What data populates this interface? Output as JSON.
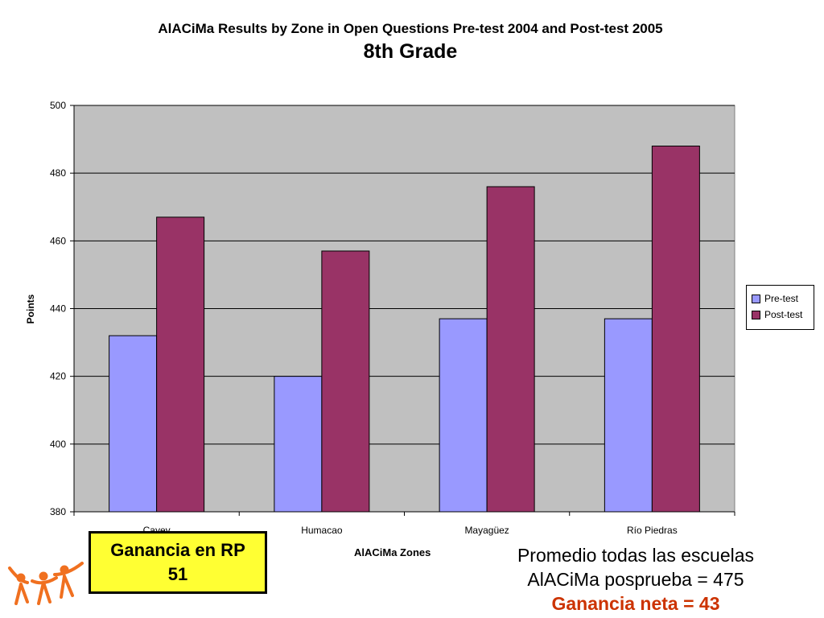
{
  "header": {
    "title": "AlACiMa Results by Zone in Open Questions Pre-test 2004 and Post-test 2005",
    "subtitle": "8th Grade"
  },
  "chart_data": {
    "type": "bar",
    "title": "AlACiMa Results by Zone in Open Questions Pre-test 2004 and Post-test 2005",
    "subtitle": "8th Grade",
    "xlabel": "AlACiMa Zones",
    "ylabel": "Points",
    "categories": [
      "Cayey",
      "Humacao",
      "Mayagüez",
      "Río Piedras"
    ],
    "series": [
      {
        "name": "Pre-test",
        "values": [
          432,
          420,
          437,
          437
        ],
        "color": "#9999ff"
      },
      {
        "name": "Post-test",
        "values": [
          467,
          457,
          476,
          488
        ],
        "color": "#993366"
      }
    ],
    "ylim": [
      380,
      500
    ],
    "yticks": [
      380,
      400,
      420,
      440,
      460,
      480,
      500
    ],
    "grid": true,
    "plot_background": "#c0c0c0",
    "legend_position": "right"
  },
  "annotations": {
    "gain_box": {
      "line1": "Ganancia en RP",
      "line2": "51"
    },
    "average": {
      "line1": "Promedio todas las escuelas",
      "line2": "AlACiMa posprueba = 475",
      "line3": "Ganancia neta = 43"
    }
  },
  "colors": {
    "gain_box_bg": "#ffff33",
    "net_gain_text": "#cc3300",
    "logo": "#f07020"
  }
}
